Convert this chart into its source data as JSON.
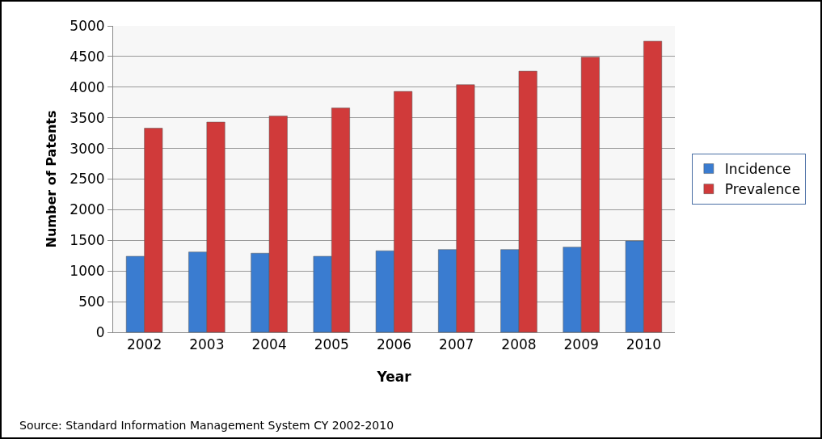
{
  "chart_data": {
    "type": "bar",
    "xlabel": "Year",
    "ylabel": "Number of Patents",
    "categories": [
      "2002",
      "2003",
      "2004",
      "2005",
      "2006",
      "2007",
      "2008",
      "2009",
      "2010"
    ],
    "series": [
      {
        "name": "Incidence",
        "color": "#3a7cd0",
        "values": [
          1240,
          1310,
          1290,
          1240,
          1330,
          1350,
          1350,
          1390,
          1490
        ]
      },
      {
        "name": "Prevalence",
        "color": "#d03a3a",
        "values": [
          3330,
          3430,
          3530,
          3660,
          3930,
          4040,
          4260,
          4490,
          4750
        ]
      }
    ],
    "ylim": [
      0,
      5000
    ],
    "yticks": [
      0,
      500,
      1000,
      1500,
      2000,
      2500,
      3000,
      3500,
      4000,
      4500,
      5000
    ],
    "grid": "y",
    "legend": "right",
    "annotations": [
      "Source: Standard Information Management System CY 2002-2010"
    ]
  }
}
